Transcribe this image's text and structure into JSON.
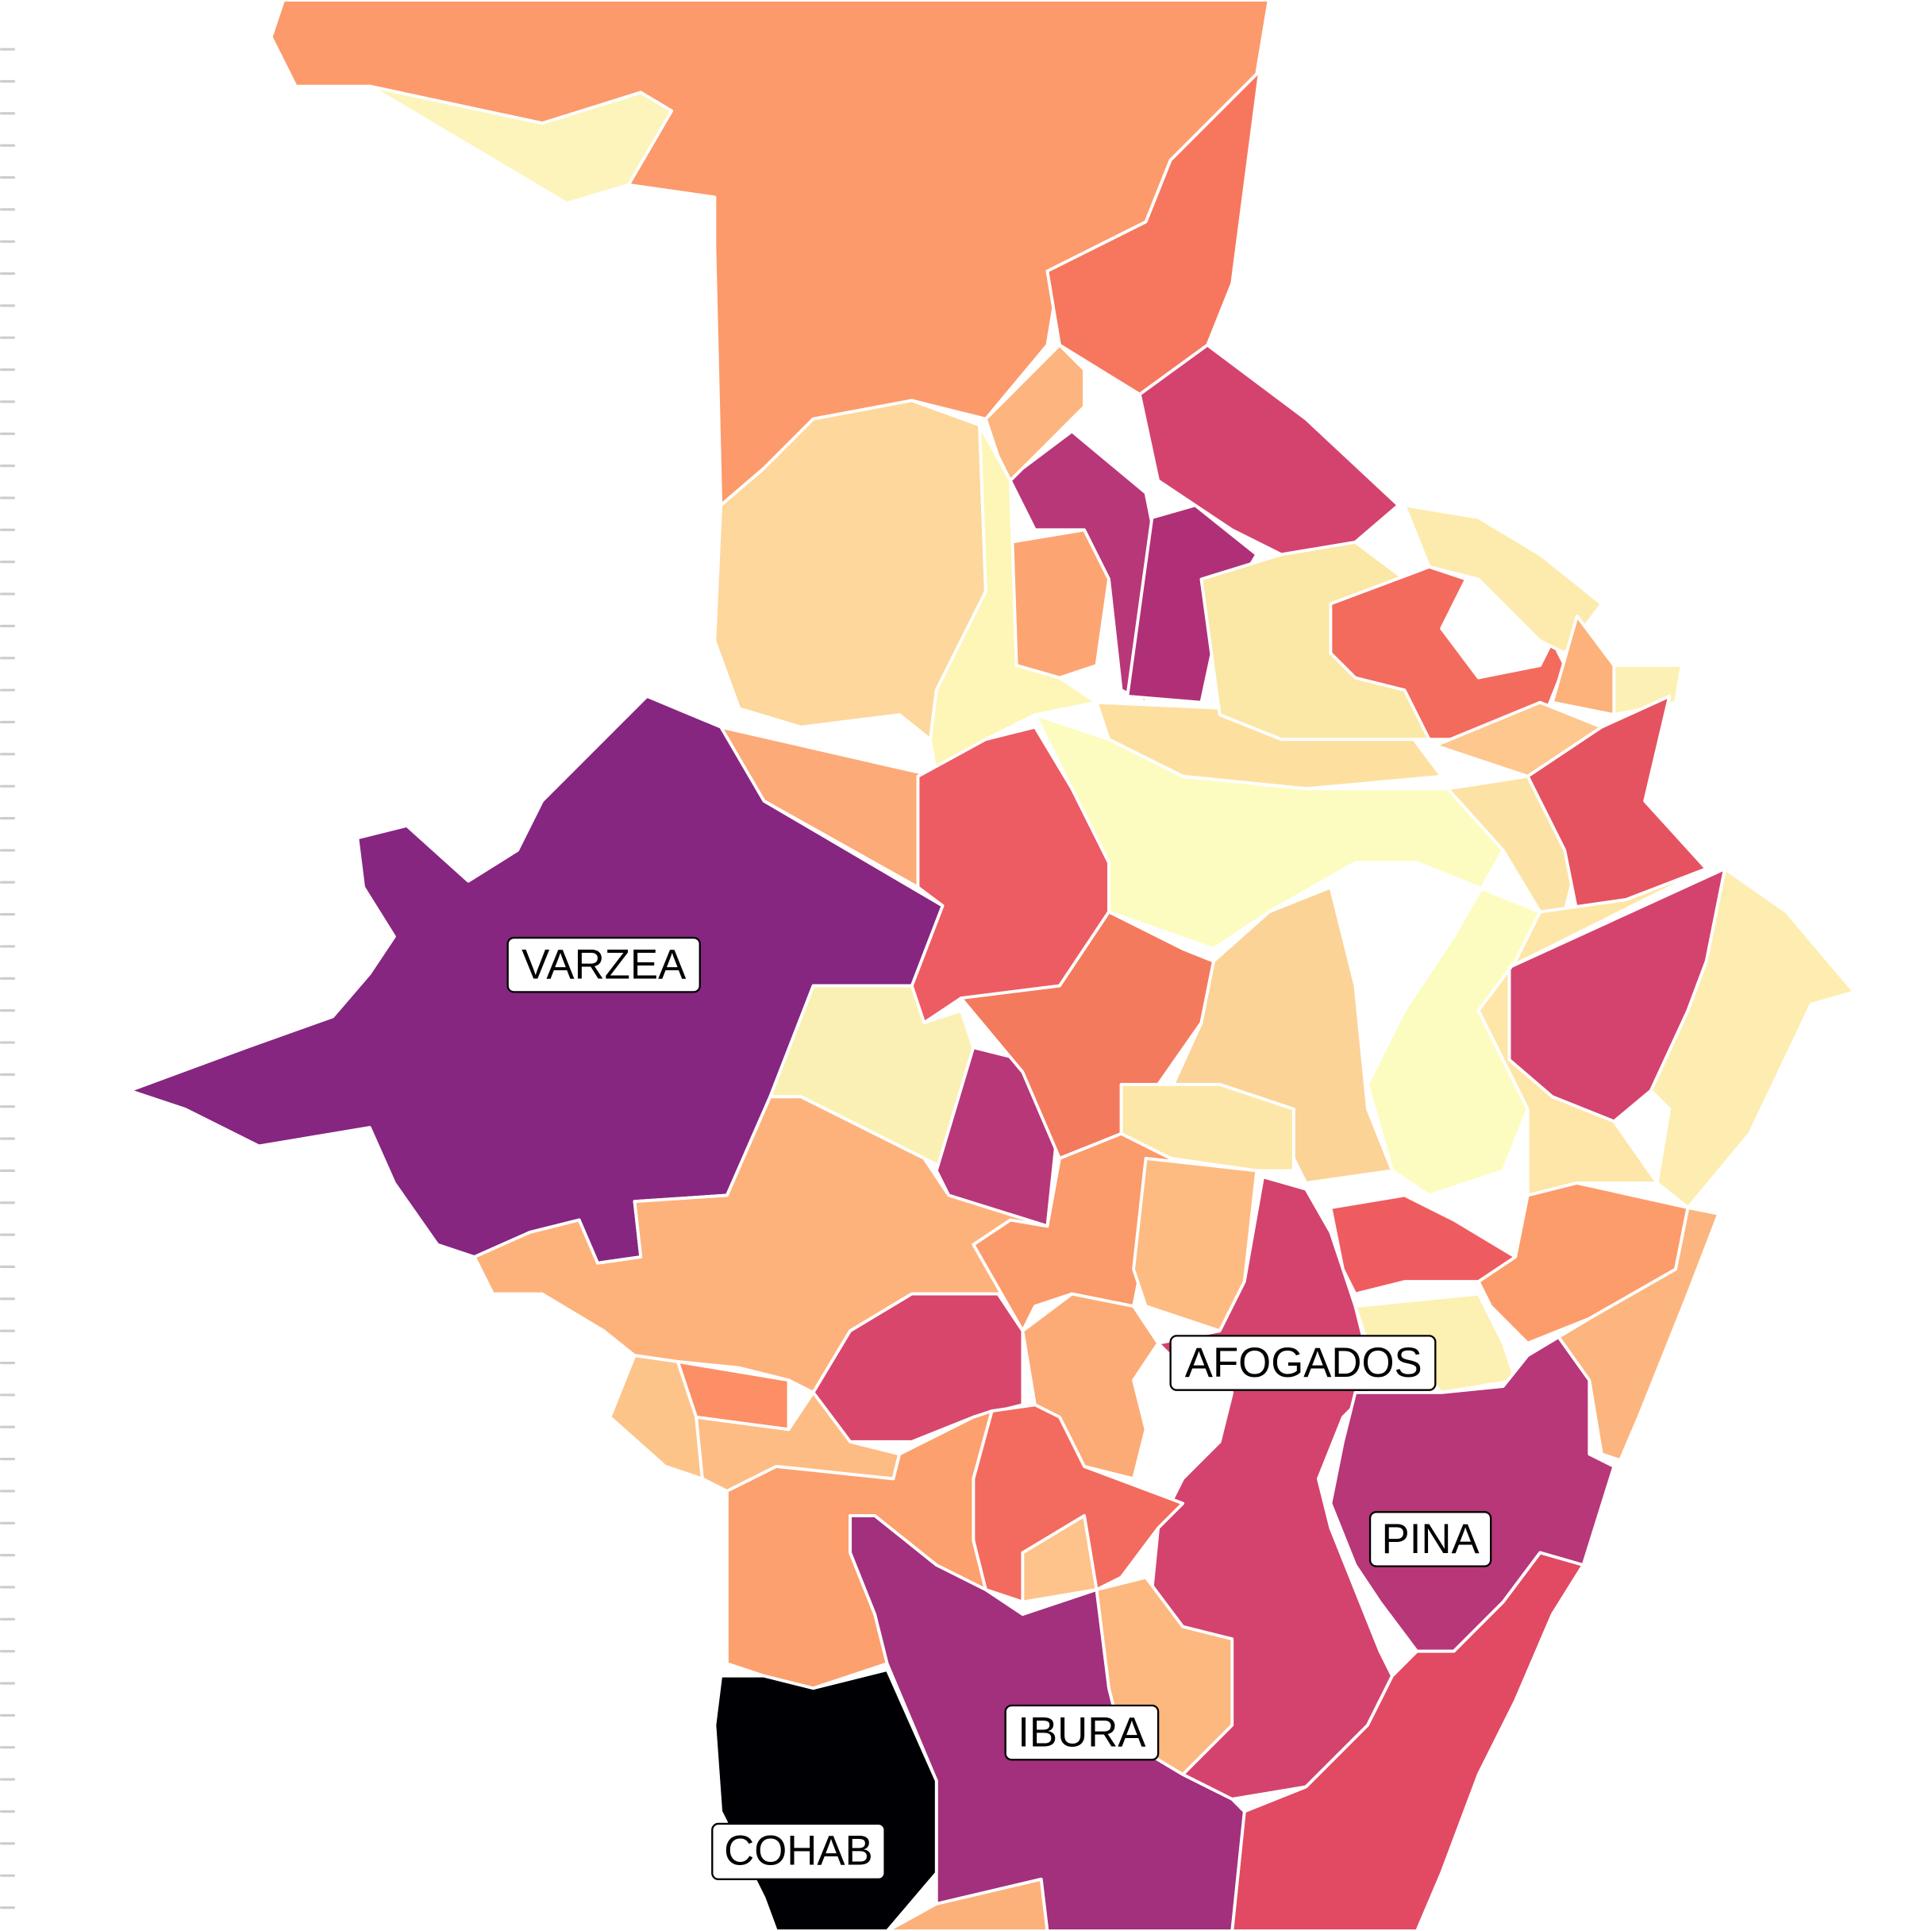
{
  "map": {
    "labels": [
      "VARZEA",
      "AFOGADOS",
      "PINA",
      "IBURA",
      "COHAB"
    ]
  }
}
